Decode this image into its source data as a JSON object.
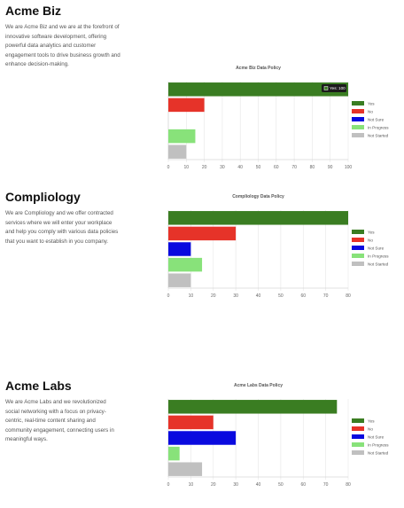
{
  "companies": [
    {
      "name": "Acme Biz",
      "description": "We are Acme Biz and we are at the forefront of innovative software development, offering powerful data analytics and customer engagement tools to drive business growth and enhance decision-making."
    },
    {
      "name": "Compliology",
      "description": "We are Compliology and we offer contracted services where we will enter your workplace and help you comply with various data policies that you want to establish in you company."
    },
    {
      "name": "Acme Labs",
      "description": "We are Acme Labs and we revolutionized social networking with a focus on privacy-centric, real-time content sharing and community engagement, connecting users in meaningful ways."
    }
  ],
  "colors": {
    "Yes": "#3a7d22",
    "No": "#e63329",
    "Not Sure": "#0a0adf",
    "In Progress": "#88e27a",
    "Not Started": "#c0c0c0"
  },
  "chart_data": [
    {
      "type": "bar",
      "orientation": "horizontal",
      "title": "Acme Biz Data Policy",
      "categories": [
        "Yes",
        "No",
        "Not Sure",
        "In Progress",
        "Not Started"
      ],
      "values": [
        100,
        20,
        0,
        15,
        10
      ],
      "xlim": [
        0,
        100
      ],
      "xticks": [
        0,
        10,
        20,
        30,
        40,
        50,
        60,
        70,
        80,
        90,
        100
      ],
      "legend": "right",
      "grid": true,
      "tooltip": "Yes: 100"
    },
    {
      "type": "bar",
      "orientation": "horizontal",
      "title": "Compliology Data Policy",
      "categories": [
        "Yes",
        "No",
        "Not Sure",
        "In Progress",
        "Not Started"
      ],
      "values": [
        80,
        30,
        10,
        15,
        10
      ],
      "xlim": [
        0,
        80
      ],
      "xticks": [
        0,
        10,
        20,
        30,
        40,
        50,
        60,
        70,
        80
      ],
      "legend": "right",
      "grid": true
    },
    {
      "type": "bar",
      "orientation": "horizontal",
      "title": "Acme Labs Data Policy",
      "categories": [
        "Yes",
        "No",
        "Not Sure",
        "In Progress",
        "Not Started"
      ],
      "values": [
        75,
        20,
        30,
        5,
        15
      ],
      "xlim": [
        0,
        80
      ],
      "xticks": [
        0,
        10,
        20,
        30,
        40,
        50,
        60,
        70,
        80
      ],
      "legend": "right",
      "grid": true
    }
  ]
}
